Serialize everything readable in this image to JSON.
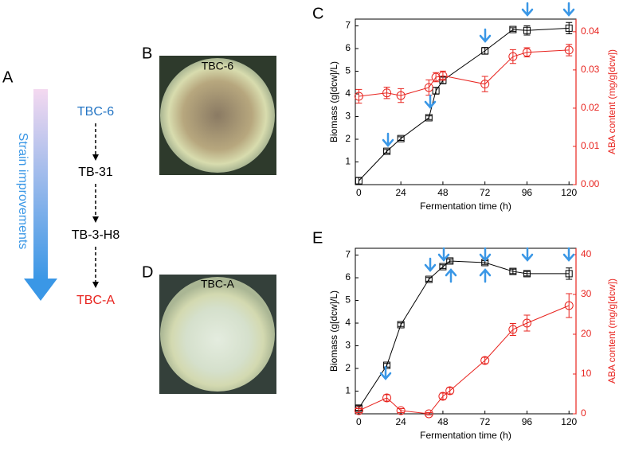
{
  "chart_data": [
    {
      "type": "line",
      "panel": "C",
      "x_label": "Fermentation time (h)",
      "y_label": "Biomass (g[dcw]/L)",
      "y2_label": "ABA content (mg/g[dcw])",
      "x": [
        0,
        16,
        24,
        40,
        44,
        48,
        72,
        88,
        96,
        120
      ],
      "xlim": [
        -2,
        124
      ],
      "xticks": [
        0,
        24,
        48,
        72,
        96,
        120
      ],
      "ylim": [
        0,
        7.3
      ],
      "yticks": [
        1,
        2,
        3,
        4,
        5,
        6,
        7
      ],
      "y2lim": [
        0,
        0.0433
      ],
      "y2ticks": [
        {
          "value": 0,
          "label": "0.00"
        },
        {
          "value": 0.01,
          "label": "0.01"
        },
        {
          "value": 0.02,
          "label": "0.02"
        },
        {
          "value": 0.03,
          "label": "0.03"
        },
        {
          "value": 0.04,
          "label": "0.04"
        }
      ],
      "series": [
        {
          "name": "Biomass",
          "color": "#000000",
          "marker": "square",
          "values": [
            0.17,
            1.47,
            2.03,
            2.95,
            4.14,
            4.6,
            5.9,
            6.84,
            6.8,
            6.9
          ],
          "errors": [
            0.15,
            0.08,
            0.08,
            0.08,
            0.15,
            0.15,
            0.15,
            0.08,
            0.2,
            0.25
          ]
        },
        {
          "name": "ABA",
          "color": "#e8241f",
          "marker": "circle",
          "axis": "y2",
          "values": [
            0.0231,
            0.024,
            0.0233,
            0.0254,
            0.0281,
            0.0285,
            0.0263,
            0.0335,
            0.0346,
            0.0352
          ],
          "errors": [
            0.0018,
            0.0015,
            0.0018,
            0.002,
            0.0012,
            0.0012,
            0.002,
            0.0018,
            0.0012,
            0.0015
          ]
        }
      ]
    },
    {
      "type": "line",
      "panel": "E",
      "x_label": "Fermentation time (h)",
      "y_label": "Biomass (g[dcw]/L)",
      "y2_label": "ABA content (mg/g[dcw])",
      "x": [
        0,
        16,
        24,
        40,
        48,
        52,
        72,
        88,
        96,
        120
      ],
      "xlim": [
        -2,
        124
      ],
      "xticks": [
        0,
        24,
        48,
        72,
        96,
        120
      ],
      "ylim": [
        0,
        7.3
      ],
      "yticks": [
        1,
        2,
        3,
        4,
        5,
        6,
        7
      ],
      "y2lim": [
        0,
        41.6
      ],
      "y2ticks": [
        0,
        10,
        20,
        30,
        40
      ],
      "series": [
        {
          "name": "Biomass",
          "color": "#000000",
          "marker": "square",
          "values": [
            0.25,
            2.14,
            3.93,
            5.93,
            6.49,
            6.74,
            6.67,
            6.28,
            6.18,
            6.18
          ],
          "errors": [
            0.1,
            0.08,
            0.08,
            0.08,
            0.08,
            0.08,
            0.08,
            0.1,
            0.1,
            0.25
          ]
        },
        {
          "name": "ABA",
          "color": "#e8241f",
          "marker": "circle",
          "axis": "y2",
          "values": [
            0.8,
            4,
            0.8,
            0,
            4.4,
            5.8,
            13.4,
            21.2,
            22.8,
            27.2
          ],
          "errors": [
            0.5,
            0.8,
            0.5,
            0.3,
            0.8,
            0.8,
            0.8,
            1.5,
            2,
            3
          ]
        }
      ]
    }
  ],
  "panels": {
    "a": "A",
    "b": "B",
    "d": "D",
    "improvement": "Strain improvements",
    "strains": [
      "TBC-6",
      "TB-31",
      "TB-3-H8",
      "TBC-A"
    ],
    "photo_b": "TBC-6",
    "photo_d": "TBC-A"
  }
}
